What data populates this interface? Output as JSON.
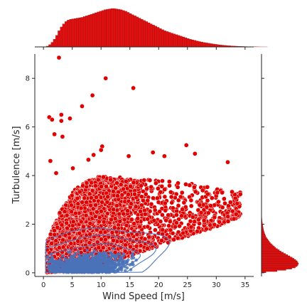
{
  "chart_data": {
    "type": "scatter",
    "title": "",
    "xlabel": "Wind Speed [m/s]",
    "ylabel": "Turbulence [m/s]",
    "xlim": [
      -1.5,
      36.5
    ],
    "ylim": [
      -0.15,
      9.0
    ],
    "x_ticks": [
      0,
      5,
      10,
      15,
      20,
      25,
      30,
      35
    ],
    "y_ticks": [
      0,
      2,
      4,
      6,
      8
    ],
    "grid": false,
    "legend": "none",
    "colors": {
      "scatter": "#e00000",
      "scatter_edge": "#ffffff",
      "histogram": "#e01010",
      "kde": "#4a72b8",
      "axis": "#262626"
    },
    "scatter_cloud": {
      "description_points": "dense red point cloud; lower boundary rises from ~0 at 1 m/s to ~2.3 at 34 m/s, upper boundary rises from ~1.2 at 1 m/s to ~3.8 at 15 m/s and ~3.3 at 34 m/s",
      "lower_envelope": [
        [
          0.5,
          0.0
        ],
        [
          5,
          0.1
        ],
        [
          10,
          0.35
        ],
        [
          15,
          0.7
        ],
        [
          20,
          1.1
        ],
        [
          25,
          1.5
        ],
        [
          30,
          1.9
        ],
        [
          34,
          2.3
        ]
      ],
      "upper_envelope": [
        [
          0.5,
          1.2
        ],
        [
          3,
          2.6
        ],
        [
          6,
          3.6
        ],
        [
          10,
          4.0
        ],
        [
          15,
          3.9
        ],
        [
          20,
          3.8
        ],
        [
          25,
          3.7
        ],
        [
          30,
          3.5
        ],
        [
          34.5,
          3.3
        ]
      ]
    },
    "outliers": [
      [
        2.7,
        8.85
      ],
      [
        10.8,
        8.0
      ],
      [
        15.6,
        7.6
      ],
      [
        8.5,
        7.3
      ],
      [
        6.7,
        6.85
      ],
      [
        1.0,
        6.4
      ],
      [
        1.5,
        6.3
      ],
      [
        3.1,
        6.5
      ],
      [
        3.1,
        6.25
      ],
      [
        4.6,
        6.35
      ],
      [
        1.9,
        5.7
      ],
      [
        3.3,
        5.6
      ],
      [
        10.2,
        5.2
      ],
      [
        10.0,
        5.05
      ],
      [
        24.8,
        5.25
      ],
      [
        19.0,
        4.95
      ],
      [
        26.3,
        4.9
      ],
      [
        14.8,
        4.8
      ],
      [
        21.0,
        4.8
      ],
      [
        32.0,
        4.55
      ],
      [
        1.2,
        4.6
      ],
      [
        8.7,
        4.85
      ],
      [
        2.2,
        4.1
      ],
      [
        5.1,
        4.3
      ],
      [
        7.8,
        4.65
      ]
    ],
    "kde_contours": {
      "center": [
        7.5,
        0.45
      ],
      "levels": 5
    },
    "marginal_x_histogram": {
      "type": "bar",
      "bin_start": 0.5,
      "bin_width": 0.4,
      "values": [
        2,
        6,
        12,
        20,
        30,
        42,
        52,
        60,
        66,
        70,
        72,
        73,
        74,
        75,
        76,
        77,
        79,
        81,
        83,
        85,
        87,
        89,
        91,
        93,
        95,
        97,
        98,
        99,
        100,
        100,
        99,
        98,
        97,
        95,
        93,
        90,
        87,
        84,
        81,
        78,
        75,
        72,
        69,
        66,
        63,
        60,
        57,
        54,
        51,
        48,
        45,
        42,
        40,
        38,
        36,
        34,
        32,
        30,
        28,
        26,
        24,
        22,
        20,
        18.5,
        17,
        15.5,
        14,
        12.8,
        11.6,
        10.5,
        9.5,
        8.5,
        7.6,
        6.8,
        6.0,
        5.3,
        4.6,
        4.0,
        3.5,
        3.0,
        2.6,
        2.2,
        1.9,
        1.6,
        1.3,
        1.1,
        0.9,
        0.7,
        0.55,
        0.4,
        0.3,
        0.22,
        0.15,
        0.1,
        0.06,
        0.03
      ]
    },
    "marginal_y_histogram": {
      "type": "bar",
      "bin_start": 0.0,
      "bin_width": 0.05,
      "values": [
        10,
        35,
        55,
        68,
        76,
        80,
        82,
        83,
        82,
        80,
        77,
        73,
        69,
        64,
        59,
        54,
        49,
        44,
        40,
        36,
        32,
        29,
        26,
        23,
        20,
        18,
        16,
        14,
        12,
        10,
        9,
        8,
        7,
        6,
        5,
        4.5,
        4,
        3.5,
        3,
        2.5,
        2,
        1.7,
        1.4,
        1.1,
        0.9,
        0.7,
        0.5,
        0.4,
        0.3,
        0.2,
        0.1
      ]
    }
  }
}
